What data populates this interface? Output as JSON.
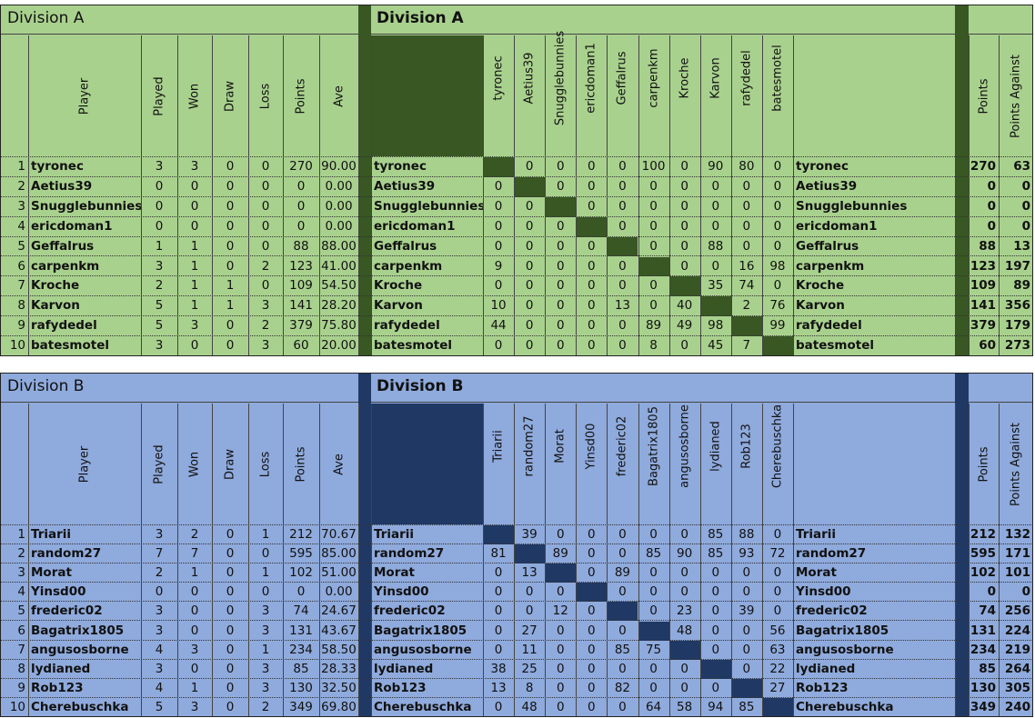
{
  "colors": {
    "divA_bg": "#a9d18e",
    "divA_dark": "#385723",
    "divB_bg": "#8faadc",
    "divB_dark": "#203864"
  },
  "headers": {
    "player": "Player",
    "played": "Played",
    "won": "Won",
    "draw": "Draw",
    "loss": "Loss",
    "points": "Points",
    "ave": "Ave",
    "points_for": "Points",
    "points_against": "Points Against"
  },
  "divisions": [
    {
      "title": "Division A",
      "players": [
        "tyronec",
        "Aetius39",
        "Snugglebunnies",
        "ericdoman1",
        "Geffalrus",
        "carpenkm",
        "Kroche",
        "Karvon",
        "rafydedel",
        "batesmotel"
      ],
      "stats": [
        [
          "1",
          "tyronec",
          "3",
          "3",
          "0",
          "0",
          "270",
          "90.00"
        ],
        [
          "2",
          "Aetius39",
          "0",
          "0",
          "0",
          "0",
          "0",
          "0.00"
        ],
        [
          "3",
          "Snugglebunnies",
          "0",
          "0",
          "0",
          "0",
          "0",
          "0.00"
        ],
        [
          "4",
          "ericdoman1",
          "0",
          "0",
          "0",
          "0",
          "0",
          "0.00"
        ],
        [
          "5",
          "Geffalrus",
          "1",
          "1",
          "0",
          "0",
          "88",
          "88.00"
        ],
        [
          "6",
          "carpenkm",
          "3",
          "1",
          "0",
          "2",
          "123",
          "41.00"
        ],
        [
          "7",
          "Kroche",
          "2",
          "1",
          "1",
          "0",
          "109",
          "54.50"
        ],
        [
          "8",
          "Karvon",
          "5",
          "1",
          "1",
          "3",
          "141",
          "28.20"
        ],
        [
          "9",
          "rafydedel",
          "5",
          "3",
          "0",
          "2",
          "379",
          "75.80"
        ],
        [
          "10",
          "batesmotel",
          "3",
          "0",
          "0",
          "3",
          "60",
          "20.00"
        ]
      ],
      "matrix": [
        [
          "",
          "0",
          "0",
          "0",
          "0",
          "100",
          "0",
          "90",
          "80",
          "0"
        ],
        [
          "0",
          "",
          "0",
          "0",
          "0",
          "0",
          "0",
          "0",
          "0",
          "0"
        ],
        [
          "0",
          "0",
          "",
          "0",
          "0",
          "0",
          "0",
          "0",
          "0",
          "0"
        ],
        [
          "0",
          "0",
          "0",
          "",
          "0",
          "0",
          "0",
          "0",
          "0",
          "0"
        ],
        [
          "0",
          "0",
          "0",
          "0",
          "",
          "0",
          "0",
          "88",
          "0",
          "0"
        ],
        [
          "9",
          "0",
          "0",
          "0",
          "0",
          "",
          "0",
          "0",
          "16",
          "98"
        ],
        [
          "0",
          "0",
          "0",
          "0",
          "0",
          "0",
          "",
          "35",
          "74",
          "0"
        ],
        [
          "10",
          "0",
          "0",
          "0",
          "13",
          "0",
          "40",
          "",
          "2",
          "76"
        ],
        [
          "44",
          "0",
          "0",
          "0",
          "0",
          "89",
          "49",
          "98",
          "",
          "99"
        ],
        [
          "0",
          "0",
          "0",
          "0",
          "0",
          "8",
          "0",
          "45",
          "7",
          ""
        ]
      ],
      "totals": [
        [
          "tyronec",
          "270",
          "63"
        ],
        [
          "Aetius39",
          "0",
          "0"
        ],
        [
          "Snugglebunnies",
          "0",
          "0"
        ],
        [
          "ericdoman1",
          "0",
          "0"
        ],
        [
          "Geffalrus",
          "88",
          "13"
        ],
        [
          "carpenkm",
          "123",
          "197"
        ],
        [
          "Kroche",
          "109",
          "89"
        ],
        [
          "Karvon",
          "141",
          "356"
        ],
        [
          "rafydedel",
          "379",
          "179"
        ],
        [
          "batesmotel",
          "60",
          "273"
        ]
      ]
    },
    {
      "title": "Division B",
      "players": [
        "Triarii",
        "random27",
        "Morat",
        "Yinsd00",
        "frederic02",
        "Bagatrix1805",
        "angusosborne",
        "lydianed",
        "Rob123",
        "Cherebuschka"
      ],
      "stats": [
        [
          "1",
          "Triarii",
          "3",
          "2",
          "0",
          "1",
          "212",
          "70.67"
        ],
        [
          "2",
          "random27",
          "7",
          "7",
          "0",
          "0",
          "595",
          "85.00"
        ],
        [
          "3",
          "Morat",
          "2",
          "1",
          "0",
          "1",
          "102",
          "51.00"
        ],
        [
          "4",
          "Yinsd00",
          "0",
          "0",
          "0",
          "0",
          "0",
          "0.00"
        ],
        [
          "5",
          "frederic02",
          "3",
          "0",
          "0",
          "3",
          "74",
          "24.67"
        ],
        [
          "6",
          "Bagatrix1805",
          "3",
          "0",
          "0",
          "3",
          "131",
          "43.67"
        ],
        [
          "7",
          "angusosborne",
          "4",
          "3",
          "0",
          "1",
          "234",
          "58.50"
        ],
        [
          "8",
          "lydianed",
          "3",
          "0",
          "0",
          "3",
          "85",
          "28.33"
        ],
        [
          "9",
          "Rob123",
          "4",
          "1",
          "0",
          "3",
          "130",
          "32.50"
        ],
        [
          "10",
          "Cherebuschka",
          "5",
          "3",
          "0",
          "2",
          "349",
          "69.80"
        ]
      ],
      "matrix": [
        [
          "",
          "39",
          "0",
          "0",
          "0",
          "0",
          "0",
          "85",
          "88",
          "0"
        ],
        [
          "81",
          "",
          "89",
          "0",
          "0",
          "85",
          "90",
          "85",
          "93",
          "72"
        ],
        [
          "0",
          "13",
          "",
          "0",
          "89",
          "0",
          "0",
          "0",
          "0",
          "0"
        ],
        [
          "0",
          "0",
          "0",
          "",
          "0",
          "0",
          "0",
          "0",
          "0",
          "0"
        ],
        [
          "0",
          "0",
          "12",
          "0",
          "",
          "0",
          "23",
          "0",
          "39",
          "0"
        ],
        [
          "0",
          "27",
          "0",
          "0",
          "0",
          "",
          "48",
          "0",
          "0",
          "56"
        ],
        [
          "0",
          "11",
          "0",
          "0",
          "85",
          "75",
          "",
          "0",
          "0",
          "63"
        ],
        [
          "38",
          "25",
          "0",
          "0",
          "0",
          "0",
          "0",
          "",
          "0",
          "22"
        ],
        [
          "13",
          "8",
          "0",
          "0",
          "82",
          "0",
          "0",
          "0",
          "",
          "27"
        ],
        [
          "0",
          "48",
          "0",
          "0",
          "0",
          "64",
          "58",
          "94",
          "85",
          ""
        ]
      ],
      "totals": [
        [
          "Triarii",
          "212",
          "132"
        ],
        [
          "random27",
          "595",
          "171"
        ],
        [
          "Morat",
          "102",
          "101"
        ],
        [
          "Yinsd00",
          "0",
          "0"
        ],
        [
          "frederic02",
          "74",
          "256"
        ],
        [
          "Bagatrix1805",
          "131",
          "224"
        ],
        [
          "angusosborne",
          "234",
          "219"
        ],
        [
          "lydianed",
          "85",
          "264"
        ],
        [
          "Rob123",
          "130",
          "305"
        ],
        [
          "Cherebuschka",
          "349",
          "240"
        ]
      ]
    }
  ]
}
